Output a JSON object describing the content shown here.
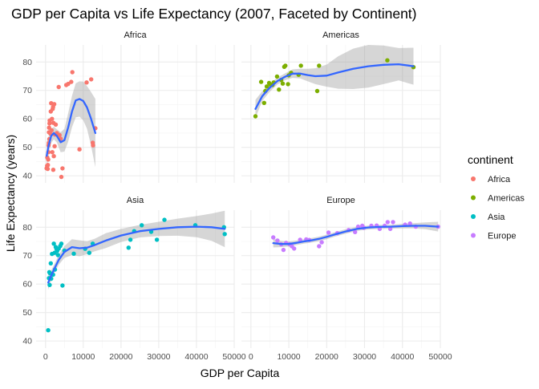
{
  "chart_data": {
    "type": "scatter",
    "title": "GDP per Capita vs Life Expectancy (2007, Faceted by Continent)",
    "xlabel": "GDP per Capita",
    "ylabel": "Life Expectancy (years)",
    "xlim": [
      -2500,
      50000
    ],
    "ylim": [
      37.5,
      86
    ],
    "x_ticks": [
      0,
      10000,
      20000,
      30000,
      40000,
      50000
    ],
    "y_ticks": [
      40,
      50,
      60,
      70,
      80
    ],
    "grid": true,
    "smooth": {
      "color": "#3366FF",
      "band_color": "#999999"
    },
    "legend": {
      "title": "continent",
      "position": "right",
      "entries": [
        {
          "label": "Africa",
          "color": "#F8766D"
        },
        {
          "label": "Americas",
          "color": "#7CAE00"
        },
        {
          "label": "Asia",
          "color": "#00BFC4"
        },
        {
          "label": "Europe",
          "color": "#C77CFF"
        }
      ]
    },
    "facets": [
      {
        "name": "Africa",
        "color": "#F8766D",
        "points": [
          [
            277,
            42.6
          ],
          [
            430,
            43.5
          ],
          [
            470,
            46.4
          ],
          [
            580,
            42.4
          ],
          [
            620,
            43.8
          ],
          [
            700,
            45.7
          ],
          [
            750,
            48.3
          ],
          [
            800,
            50.7
          ],
          [
            850,
            51.5
          ],
          [
            900,
            55.3
          ],
          [
            950,
            56.9
          ],
          [
            1000,
            52.9
          ],
          [
            1050,
            58.4
          ],
          [
            1100,
            59.4
          ],
          [
            1200,
            55.0
          ],
          [
            1300,
            54.8
          ],
          [
            1400,
            62.6
          ],
          [
            1500,
            65.5
          ],
          [
            1600,
            56.0
          ],
          [
            1700,
            60.0
          ],
          [
            1800,
            48.3
          ],
          [
            1900,
            63.5
          ],
          [
            2000,
            64.2
          ],
          [
            2050,
            42.1
          ],
          [
            2100,
            58.6
          ],
          [
            2200,
            46.9
          ],
          [
            2300,
            65.2
          ],
          [
            2400,
            50.4
          ],
          [
            2500,
            54.5
          ],
          [
            2700,
            58.0
          ],
          [
            3000,
            55.0
          ],
          [
            3500,
            71.2
          ],
          [
            3700,
            54.3
          ],
          [
            4000,
            53.0
          ],
          [
            4200,
            39.6
          ],
          [
            4500,
            42.6
          ],
          [
            5500,
            71.9
          ],
          [
            6000,
            72.3
          ],
          [
            6800,
            73.0
          ],
          [
            7100,
            76.4
          ],
          [
            9000,
            49.3
          ],
          [
            10900,
            72.8
          ],
          [
            12100,
            73.9
          ],
          [
            12500,
            51.6
          ],
          [
            12600,
            50.7
          ],
          [
            13200,
            56.7
          ]
        ],
        "smooth": [
          [
            300,
            47.0
          ],
          [
            800,
            50.5
          ],
          [
            1500,
            54.0
          ],
          [
            2200,
            55.0
          ],
          [
            3000,
            54.0
          ],
          [
            4000,
            51.8
          ],
          [
            5000,
            52.5
          ],
          [
            6000,
            57.0
          ],
          [
            7000,
            62.5
          ],
          [
            8000,
            66.5
          ],
          [
            9000,
            67.0
          ],
          [
            10000,
            66.3
          ],
          [
            11000,
            64.0
          ],
          [
            12000,
            60.3
          ],
          [
            13200,
            55.0
          ]
        ],
        "band": [
          [
            300,
            42.0,
            52.0
          ],
          [
            800,
            47.2,
            53.8
          ],
          [
            1500,
            51.5,
            56.5
          ],
          [
            2200,
            52.8,
            57.2
          ],
          [
            3000,
            51.7,
            56.3
          ],
          [
            4000,
            48.3,
            55.3
          ],
          [
            5000,
            48.5,
            56.5
          ],
          [
            6000,
            52.0,
            62.0
          ],
          [
            7000,
            57.0,
            68.0
          ],
          [
            8000,
            60.5,
            72.5
          ],
          [
            9000,
            60.8,
            73.2
          ],
          [
            10000,
            59.5,
            73.1
          ],
          [
            11000,
            56.5,
            71.5
          ],
          [
            12000,
            51.0,
            69.6
          ],
          [
            13200,
            43.0,
            67.0
          ]
        ]
      },
      {
        "name": "Americas",
        "color": "#7CAE00",
        "points": [
          [
            1200,
            60.9
          ],
          [
            2700,
            73.0
          ],
          [
            3500,
            65.6
          ],
          [
            3800,
            69.8
          ],
          [
            4200,
            71.4
          ],
          [
            4800,
            72.6
          ],
          [
            5200,
            72.0
          ],
          [
            5700,
            71.9
          ],
          [
            6000,
            72.8
          ],
          [
            6900,
            74.9
          ],
          [
            7400,
            70.3
          ],
          [
            8000,
            73.7
          ],
          [
            8400,
            72.4
          ],
          [
            8800,
            78.3
          ],
          [
            9100,
            78.7
          ],
          [
            9800,
            72.2
          ],
          [
            10000,
            75.3
          ],
          [
            10600,
            76.2
          ],
          [
            12600,
            75.5
          ],
          [
            13200,
            78.7
          ],
          [
            17500,
            69.8
          ],
          [
            18000,
            78.7
          ],
          [
            36000,
            80.6
          ],
          [
            42900,
            78.2
          ]
        ],
        "smooth": [
          [
            1200,
            63.5
          ],
          [
            3000,
            68.0
          ],
          [
            5000,
            71.0
          ],
          [
            7000,
            73.3
          ],
          [
            9000,
            74.8
          ],
          [
            11000,
            75.9
          ],
          [
            13000,
            75.9
          ],
          [
            15000,
            75.4
          ],
          [
            17000,
            75.0
          ],
          [
            20000,
            75.2
          ],
          [
            23000,
            76.3
          ],
          [
            27000,
            77.6
          ],
          [
            31000,
            78.5
          ],
          [
            35000,
            79.0
          ],
          [
            39000,
            79.2
          ],
          [
            42900,
            78.5
          ]
        ],
        "band": [
          [
            1200,
            60.3,
            66.7
          ],
          [
            3000,
            66.3,
            69.7
          ],
          [
            5000,
            69.6,
            72.4
          ],
          [
            7000,
            72.1,
            74.5
          ],
          [
            9000,
            73.6,
            76.0
          ],
          [
            11000,
            74.4,
            77.4
          ],
          [
            13000,
            74.2,
            77.6
          ],
          [
            15000,
            73.2,
            77.6
          ],
          [
            17000,
            72.2,
            77.8
          ],
          [
            20000,
            71.3,
            79.1
          ],
          [
            23000,
            70.6,
            82.0
          ],
          [
            27000,
            70.5,
            84.7
          ],
          [
            31000,
            71.0,
            86.0
          ],
          [
            35000,
            72.2,
            85.8
          ],
          [
            39000,
            73.5,
            84.9
          ],
          [
            42900,
            72.0,
            85.0
          ]
        ]
      },
      {
        "name": "Asia",
        "color": "#00BFC4",
        "points": [
          [
            700,
            43.8
          ],
          [
            900,
            62.1
          ],
          [
            1000,
            64.2
          ],
          [
            1100,
            59.7
          ],
          [
            1200,
            63.8
          ],
          [
            1400,
            67.3
          ],
          [
            1500,
            61.9
          ],
          [
            1700,
            70.6
          ],
          [
            2000,
            63.3
          ],
          [
            2200,
            74.2
          ],
          [
            2400,
            71.0
          ],
          [
            2500,
            65.1
          ],
          [
            2700,
            73.0
          ],
          [
            2900,
            72.4
          ],
          [
            3100,
            71.7
          ],
          [
            3300,
            70.2
          ],
          [
            3500,
            72.5
          ],
          [
            3900,
            73.4
          ],
          [
            4200,
            74.2
          ],
          [
            4500,
            59.5
          ],
          [
            5000,
            71.8
          ],
          [
            7500,
            70.7
          ],
          [
            10500,
            72.4
          ],
          [
            11600,
            71.0
          ],
          [
            12500,
            74.2
          ],
          [
            22000,
            72.8
          ],
          [
            22500,
            75.6
          ],
          [
            23500,
            78.6
          ],
          [
            25500,
            80.7
          ],
          [
            28000,
            78.4
          ],
          [
            29500,
            75.6
          ],
          [
            31500,
            82.6
          ],
          [
            39700,
            80.7
          ],
          [
            47300,
            80.0
          ],
          [
            47500,
            77.6
          ]
        ],
        "smooth": [
          [
            700,
            60.5
          ],
          [
            1500,
            63.0
          ],
          [
            2500,
            65.8
          ],
          [
            3500,
            68.5
          ],
          [
            5000,
            71.3
          ],
          [
            7000,
            73.0
          ],
          [
            9000,
            72.6
          ],
          [
            11000,
            72.8
          ],
          [
            13000,
            73.7
          ],
          [
            16000,
            75.3
          ],
          [
            20000,
            77.1
          ],
          [
            25000,
            78.6
          ],
          [
            30000,
            79.4
          ],
          [
            35000,
            80.0
          ],
          [
            40000,
            80.2
          ],
          [
            44000,
            80.0
          ],
          [
            47500,
            79.4
          ]
        ],
        "band": [
          [
            700,
            58.0,
            63.0
          ],
          [
            1500,
            61.2,
            64.8
          ],
          [
            2500,
            64.2,
            67.4
          ],
          [
            3500,
            66.8,
            70.2
          ],
          [
            5000,
            69.2,
            73.4
          ],
          [
            7000,
            70.2,
            75.8
          ],
          [
            9000,
            69.8,
            75.4
          ],
          [
            11000,
            70.5,
            75.1
          ],
          [
            13000,
            71.5,
            75.9
          ],
          [
            16000,
            72.7,
            77.9
          ],
          [
            20000,
            74.8,
            79.4
          ],
          [
            25000,
            76.4,
            80.8
          ],
          [
            30000,
            76.9,
            81.9
          ],
          [
            35000,
            77.0,
            83.0
          ],
          [
            40000,
            76.5,
            83.9
          ],
          [
            44000,
            75.2,
            84.8
          ],
          [
            47500,
            73.0,
            85.8
          ]
        ]
      },
      {
        "name": "Europe",
        "color": "#C77CFF",
        "points": [
          [
            5900,
            76.4
          ],
          [
            7000,
            75.3
          ],
          [
            8000,
            74.0
          ],
          [
            8600,
            72.0
          ],
          [
            9300,
            74.5
          ],
          [
            10200,
            74.0
          ],
          [
            10800,
            73.3
          ],
          [
            11400,
            72.5
          ],
          [
            13000,
            75.6
          ],
          [
            14600,
            75.7
          ],
          [
            15400,
            75.5
          ],
          [
            18000,
            73.3
          ],
          [
            18700,
            74.7
          ],
          [
            20500,
            78.1
          ],
          [
            22800,
            77.9
          ],
          [
            25800,
            79.0
          ],
          [
            27500,
            78.3
          ],
          [
            28300,
            80.2
          ],
          [
            29400,
            80.5
          ],
          [
            29800,
            79.8
          ],
          [
            31800,
            80.5
          ],
          [
            33200,
            80.6
          ],
          [
            34000,
            79.4
          ],
          [
            35300,
            80.5
          ],
          [
            36100,
            81.8
          ],
          [
            36800,
            79.4
          ],
          [
            37500,
            81.8
          ],
          [
            40700,
            80.9
          ],
          [
            42000,
            81.3
          ],
          [
            43500,
            80.2
          ],
          [
            49400,
            80.2
          ]
        ],
        "smooth": [
          [
            5900,
            74.4
          ],
          [
            8000,
            74.1
          ],
          [
            10000,
            74.1
          ],
          [
            12000,
            74.5
          ],
          [
            14000,
            75.0
          ],
          [
            16000,
            75.4
          ],
          [
            18000,
            75.9
          ],
          [
            20000,
            76.6
          ],
          [
            22000,
            77.4
          ],
          [
            25000,
            78.5
          ],
          [
            28000,
            79.4
          ],
          [
            31000,
            79.9
          ],
          [
            34000,
            80.1
          ],
          [
            37000,
            80.2
          ],
          [
            40000,
            80.4
          ],
          [
            43000,
            80.5
          ],
          [
            46000,
            80.5
          ],
          [
            49400,
            80.2
          ]
        ],
        "band": [
          [
            5900,
            72.9,
            75.9
          ],
          [
            8000,
            73.0,
            75.2
          ],
          [
            10000,
            73.2,
            75.0
          ],
          [
            12000,
            73.7,
            75.3
          ],
          [
            14000,
            74.2,
            75.8
          ],
          [
            16000,
            74.6,
            76.2
          ],
          [
            18000,
            75.1,
            76.7
          ],
          [
            20000,
            75.8,
            77.4
          ],
          [
            22000,
            76.6,
            78.2
          ],
          [
            25000,
            77.7,
            79.3
          ],
          [
            28000,
            78.7,
            80.1
          ],
          [
            31000,
            79.2,
            80.6
          ],
          [
            34000,
            79.4,
            80.8
          ],
          [
            37000,
            79.5,
            80.9
          ],
          [
            40000,
            79.6,
            81.2
          ],
          [
            43000,
            79.6,
            81.4
          ],
          [
            46000,
            79.3,
            81.7
          ],
          [
            49400,
            78.5,
            81.9
          ]
        ]
      }
    ]
  }
}
